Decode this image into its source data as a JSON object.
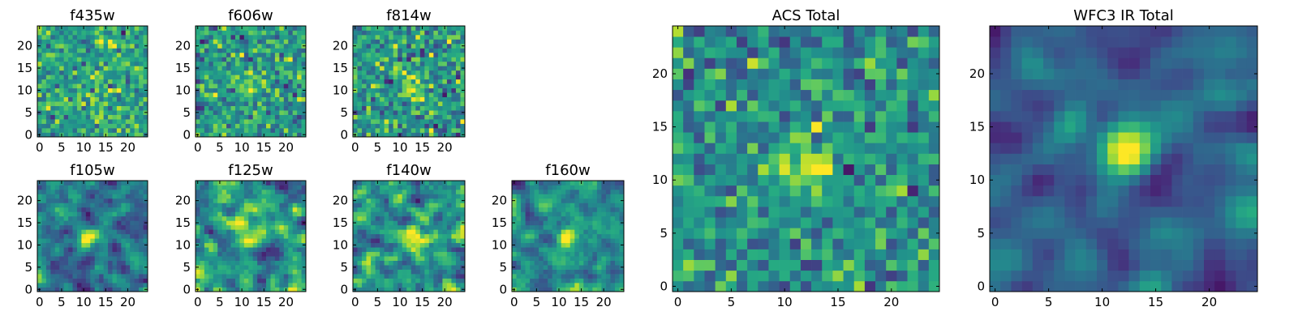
{
  "colormap": "viridis",
  "colors": {
    "low": "#440154",
    "mid_low": "#31688e",
    "mid": "#21918c",
    "mid_high": "#35b779",
    "high_mid": "#90d743",
    "high": "#fde725"
  },
  "chart_data": [
    {
      "type": "heatmap",
      "title": "f435w",
      "xticks": [
        "0",
        "5",
        "10",
        "15",
        "20"
      ],
      "yticks": [
        "0",
        "5",
        "10",
        "15",
        "20"
      ],
      "xlim": [
        0,
        24
      ],
      "ylim": [
        0,
        24
      ],
      "grid_size": 25,
      "source_location": [
        12,
        12
      ],
      "source_strength": 0.08,
      "noise": 0.95,
      "seed": 11,
      "smooth": 0
    },
    {
      "type": "heatmap",
      "title": "f606w",
      "xticks": [
        "0",
        "5",
        "10",
        "15",
        "20"
      ],
      "yticks": [
        "0",
        "5",
        "10",
        "15",
        "20"
      ],
      "xlim": [
        0,
        24
      ],
      "ylim": [
        0,
        24
      ],
      "grid_size": 25,
      "source_location": [
        12,
        11
      ],
      "source_strength": 0.25,
      "noise": 0.9,
      "seed": 23,
      "smooth": 0
    },
    {
      "type": "heatmap",
      "title": "f814w",
      "xticks": [
        "0",
        "5",
        "10",
        "15",
        "20"
      ],
      "yticks": [
        "0",
        "5",
        "10",
        "15",
        "20"
      ],
      "xlim": [
        0,
        24
      ],
      "ylim": [
        0,
        24
      ],
      "grid_size": 25,
      "source_location": [
        13,
        11
      ],
      "source_strength": 0.4,
      "noise": 0.85,
      "seed": 37,
      "smooth": 0
    },
    {
      "type": "heatmap",
      "title": "f105w",
      "xticks": [
        "0",
        "5",
        "10",
        "15",
        "20"
      ],
      "yticks": [
        "0",
        "5",
        "10",
        "15",
        "20"
      ],
      "xlim": [
        0,
        24
      ],
      "ylim": [
        0,
        24
      ],
      "grid_size": 25,
      "source_location": [
        11,
        12
      ],
      "source_strength": 0.45,
      "noise": 0.8,
      "seed": 41,
      "smooth": 1
    },
    {
      "type": "heatmap",
      "title": "f125w",
      "xticks": [
        "0",
        "5",
        "10",
        "15",
        "20"
      ],
      "yticks": [
        "0",
        "5",
        "10",
        "15",
        "20"
      ],
      "xlim": [
        0,
        24
      ],
      "ylim": [
        0,
        24
      ],
      "grid_size": 25,
      "source_location": [
        12,
        12
      ],
      "source_strength": 0.35,
      "noise": 0.8,
      "seed": 53,
      "smooth": 1
    },
    {
      "type": "heatmap",
      "title": "f140w",
      "xticks": [
        "0",
        "5",
        "10",
        "15",
        "20"
      ],
      "yticks": [
        "0",
        "5",
        "10",
        "15",
        "20"
      ],
      "xlim": [
        0,
        24
      ],
      "ylim": [
        0,
        24
      ],
      "grid_size": 25,
      "source_location": [
        13,
        11
      ],
      "source_strength": 0.4,
      "noise": 0.8,
      "seed": 67,
      "smooth": 1
    },
    {
      "type": "heatmap",
      "title": "f160w",
      "xticks": [
        "0",
        "5",
        "10",
        "15",
        "20"
      ],
      "yticks": [
        "0",
        "5",
        "10",
        "15",
        "20"
      ],
      "xlim": [
        0,
        24
      ],
      "ylim": [
        0,
        24
      ],
      "grid_size": 25,
      "source_location": [
        12,
        12
      ],
      "source_strength": 0.5,
      "noise": 0.75,
      "seed": 79,
      "smooth": 1
    },
    {
      "type": "heatmap",
      "title": "ACS Total",
      "xticks": [
        "0",
        "5",
        "10",
        "15",
        "20"
      ],
      "yticks": [
        "0",
        "5",
        "10",
        "15",
        "20"
      ],
      "xlim": [
        0,
        24
      ],
      "ylim": [
        0,
        24
      ],
      "grid_size": 25,
      "source_location": [
        12,
        11
      ],
      "source_strength": 0.45,
      "noise": 0.7,
      "seed": 83,
      "smooth": 0
    },
    {
      "type": "heatmap",
      "title": "WFC3 IR Total",
      "xticks": [
        "0",
        "5",
        "10",
        "15",
        "20"
      ],
      "yticks": [
        "0",
        "5",
        "10",
        "15",
        "20"
      ],
      "xlim": [
        0,
        24
      ],
      "ylim": [
        0,
        24
      ],
      "grid_size": 25,
      "source_location": [
        12,
        13
      ],
      "source_strength": 0.6,
      "noise": 0.6,
      "seed": 97,
      "smooth": 2
    }
  ]
}
